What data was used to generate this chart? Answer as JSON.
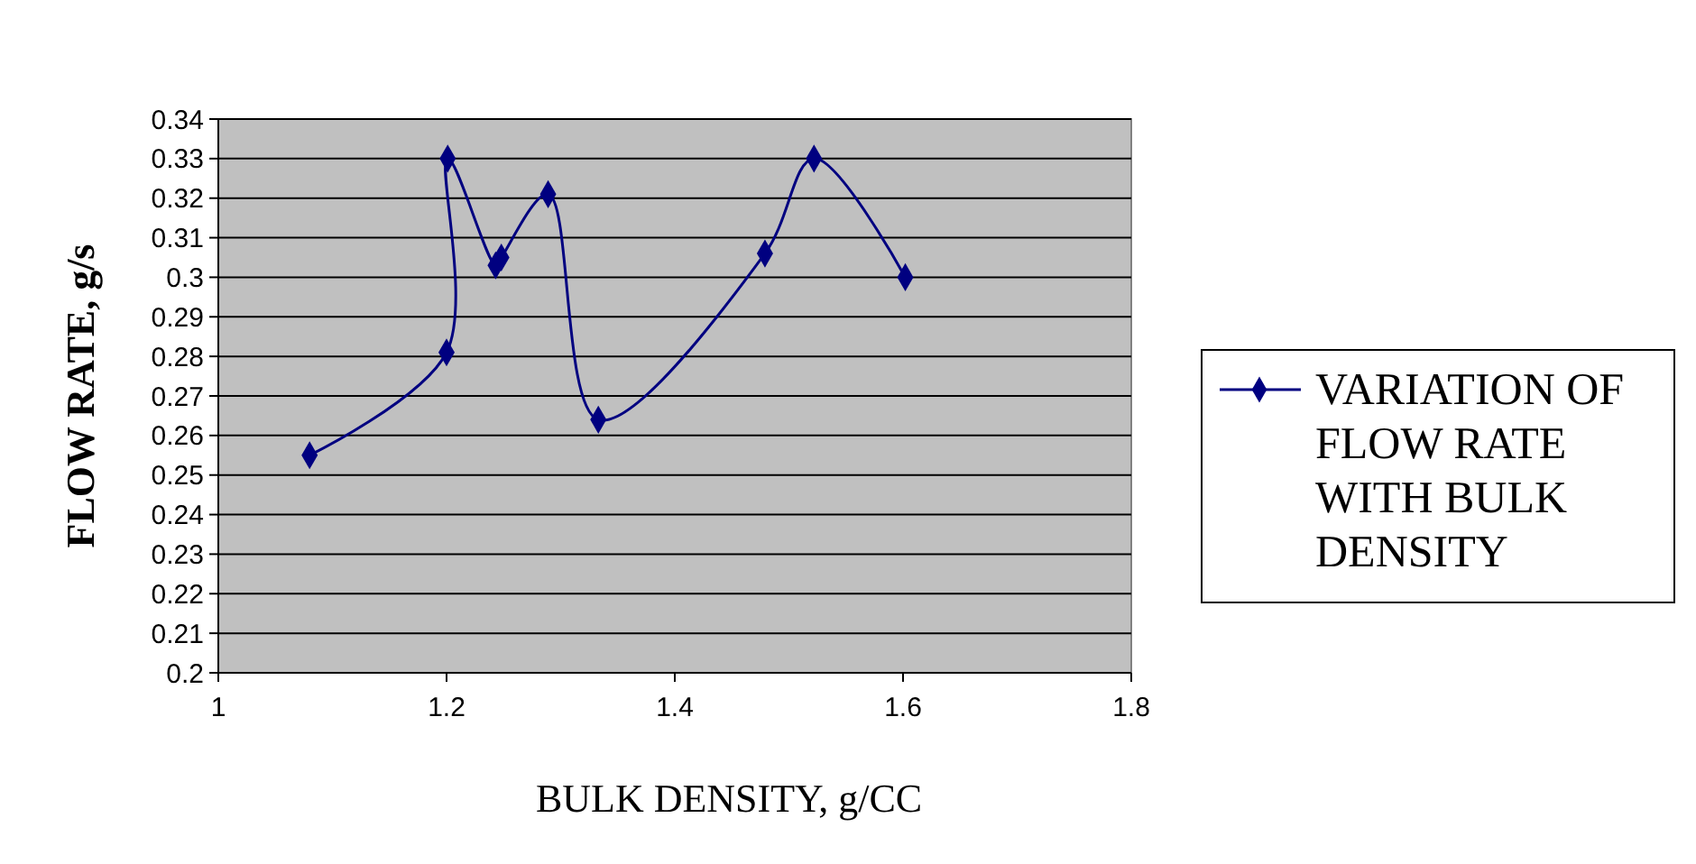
{
  "chart_data": {
    "type": "line",
    "xlabel": "BULK DENSITY, g/CC",
    "ylabel": "FLOW RATE, g/s",
    "xlim": [
      1,
      1.8
    ],
    "xticks": [
      1,
      1.2,
      1.4,
      1.6,
      1.8
    ],
    "ylim": [
      0.2,
      0.34
    ],
    "yticks": [
      0.2,
      0.21,
      0.22,
      0.23,
      0.24,
      0.25,
      0.26,
      0.27,
      0.28,
      0.29,
      0.3,
      0.31,
      0.32,
      0.33,
      0.34
    ],
    "grid": "y",
    "legend": "right",
    "marker": "diamond",
    "line_style": "solid",
    "series": [
      {
        "name": "VARIATION OF FLOW RATE WITH BULK DENSITY",
        "color": "#000080",
        "x": [
          1.08,
          1.2,
          1.201,
          1.243,
          1.248,
          1.289,
          1.333,
          1.479,
          1.522,
          1.602
        ],
        "values": [
          0.255,
          0.281,
          0.33,
          0.303,
          0.305,
          0.321,
          0.264,
          0.306,
          0.33,
          0.3
        ]
      }
    ]
  }
}
